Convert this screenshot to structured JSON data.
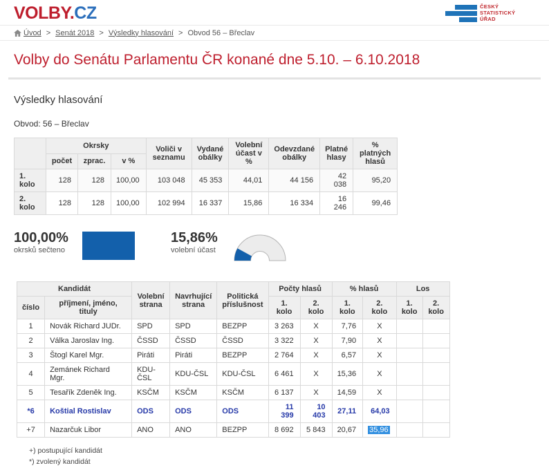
{
  "colors": {
    "brand_red": "#be1e2d",
    "brand_blue": "#2a6ebb",
    "bar_blue": "#1360ab",
    "gauge_bg": "#ececec",
    "selection_blue": "#3390e0",
    "emphasis_blue": "#2639a8"
  },
  "header": {
    "logo": {
      "part_red": "VOLBY.",
      "part_blue": "CZ"
    },
    "csu": {
      "lines": [
        "ČESKÝ",
        "STATISTICKÝ",
        "ÚŘAD"
      ]
    }
  },
  "breadcrumb": {
    "separator": ">",
    "home": "Úvod",
    "links": [
      "Senát 2018",
      "Výsledky hlasování"
    ],
    "current": "Obvod 56 – Břeclav"
  },
  "page": {
    "title": "Volby do Senátu Parlamentu ČR konané dne 5.10. – 6.10.2018",
    "subtitle": "Výsledky hlasování",
    "district": "Obvod: 56 – Břeclav"
  },
  "summary_table": {
    "group_okrsky": "Okrsky",
    "sub_headers": {
      "pocet": "počet",
      "zprac": "zprac.",
      "v_pct": "v %"
    },
    "headers": {
      "volici": "Voliči v seznamu",
      "vydane": "Vydané obálky",
      "ucast": "Volební účast v %",
      "odevzdane": "Odevzdané obálky",
      "platne": "Platné hlasy",
      "pct_platnych": "% platných hlasů"
    },
    "rows": [
      {
        "label": "1. kolo",
        "values": [
          "128",
          "128",
          "100,00",
          "103 048",
          "45 353",
          "44,01",
          "44 156",
          "42 038",
          "95,20"
        ]
      },
      {
        "label": "2. kolo",
        "values": [
          "128",
          "128",
          "100,00",
          "102 994",
          "16 337",
          "15,86",
          "16 334",
          "16 246",
          "99,46"
        ]
      }
    ]
  },
  "stats": {
    "processed": {
      "value": "100,00%",
      "label": "okrsků sečteno",
      "percent": 100
    },
    "turnout": {
      "value": "15,86%",
      "label": "volební účast",
      "percent": 15.86
    }
  },
  "candidates_table": {
    "headers": {
      "kandidat": "Kandidát",
      "cislo": "číslo",
      "jmeno": "příjmení, jméno, tituly",
      "volebni_strana": "Volební strana",
      "navrhujici_strana": "Navrhující strana",
      "politicka_prislusnost": "Politická příslušnost",
      "pocty_hlasu": "Počty hlasů",
      "pct_hlasu": "% hlasů",
      "los": "Los",
      "kolo1": "1. kolo",
      "kolo2": "2. kolo"
    },
    "rows": [
      {
        "cells": [
          "1",
          "Novák Richard JUDr.",
          "SPD",
          "SPD",
          "BEZPP",
          "3 263",
          "X",
          "7,76",
          "X",
          "",
          ""
        ],
        "emphasis": false
      },
      {
        "cells": [
          "2",
          "Válka Jaroslav Ing.",
          "ČSSD",
          "ČSSD",
          "ČSSD",
          "3 322",
          "X",
          "7,90",
          "X",
          "",
          ""
        ],
        "emphasis": false
      },
      {
        "cells": [
          "3",
          "Štogl Karel Mgr.",
          "Piráti",
          "Piráti",
          "BEZPP",
          "2 764",
          "X",
          "6,57",
          "X",
          "",
          ""
        ],
        "emphasis": false
      },
      {
        "cells": [
          "4",
          "Zemánek Richard Mgr.",
          "KDU-ČSL",
          "KDU-ČSL",
          "KDU-ČSL",
          "6 461",
          "X",
          "15,36",
          "X",
          "",
          ""
        ],
        "emphasis": false
      },
      {
        "cells": [
          "5",
          "Tesařík Zdeněk Ing.",
          "KSČM",
          "KSČM",
          "KSČM",
          "6 137",
          "X",
          "14,59",
          "X",
          "",
          ""
        ],
        "emphasis": false
      },
      {
        "cells": [
          "*6",
          "Koštial Rostislav",
          "ODS",
          "ODS",
          "ODS",
          "11 399",
          "10 403",
          "27,11",
          "64,03",
          "",
          ""
        ],
        "emphasis": true
      },
      {
        "cells": [
          "+7",
          "Nazarčuk Libor",
          "ANO",
          "ANO",
          "BEZPP",
          "8 692",
          "5 843",
          "20,67",
          "35,96",
          "",
          ""
        ],
        "emphasis": false,
        "selected_col": 8
      }
    ]
  },
  "footnotes": [
    "+) postupující kandidát",
    "*) zvolený kandidát"
  ]
}
